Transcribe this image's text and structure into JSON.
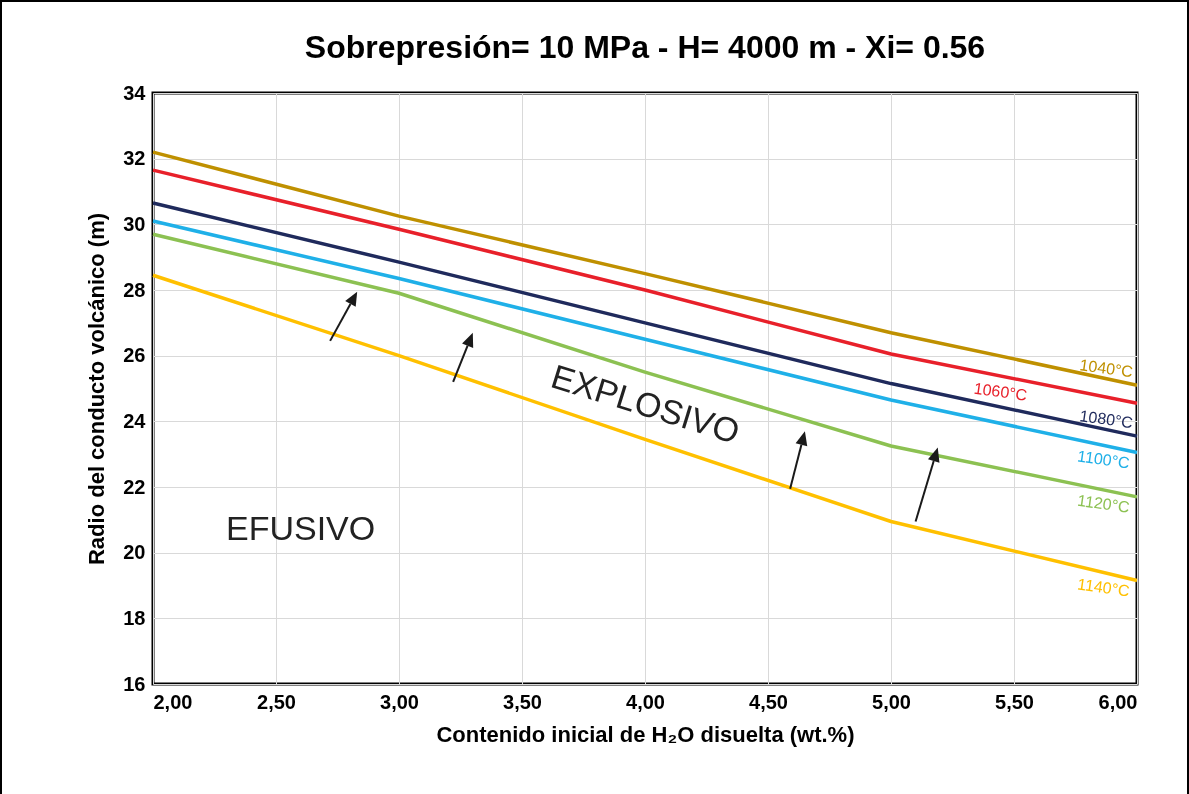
{
  "chart_data": {
    "type": "line",
    "title": "Sobrepresión= 10 MPa - H= 4000 m - Xi= 0.56",
    "xlabel": "Contenido inicial de H₂O disuelta (wt.%)",
    "ylabel": "Radio del conducto volcánico (m)",
    "x": [
      2,
      3,
      4,
      5,
      6
    ],
    "series": [
      {
        "name": "1040°C",
        "color": "#bf9000",
        "values": [
          32.2,
          30.25,
          28.5,
          26.7,
          25.1
        ]
      },
      {
        "name": "1060°C",
        "color": "#e8202a",
        "values": [
          31.65,
          29.85,
          28.0,
          26.05,
          24.55
        ]
      },
      {
        "name": "1080°C",
        "color": "#1f2a5c",
        "values": [
          30.65,
          28.85,
          27.0,
          25.15,
          23.55
        ]
      },
      {
        "name": "1100°C",
        "color": "#1fb0e8",
        "values": [
          30.1,
          28.35,
          26.5,
          24.65,
          23.05
        ]
      },
      {
        "name": "1120°C",
        "color": "#8cc152",
        "values": [
          29.7,
          27.9,
          25.5,
          23.25,
          21.7
        ]
      },
      {
        "name": "1140°C",
        "color": "#ffc000",
        "values": [
          28.45,
          26.0,
          23.45,
          20.95,
          19.15
        ]
      }
    ],
    "xlim": [
      2,
      6
    ],
    "xticks": [
      {
        "value": 2,
        "label": "2,00"
      },
      {
        "value": 2.5,
        "label": "2,50"
      },
      {
        "value": 3,
        "label": "3,00"
      },
      {
        "value": 3.5,
        "label": "3,50"
      },
      {
        "value": 4,
        "label": "4,00"
      },
      {
        "value": 4.5,
        "label": "4,50"
      },
      {
        "value": 5,
        "label": "5,00"
      },
      {
        "value": 5.5,
        "label": "5,50"
      },
      {
        "value": 6,
        "label": "6,00"
      }
    ],
    "ylim": [
      16,
      34
    ],
    "yticks": [
      16,
      18,
      20,
      22,
      24,
      26,
      28,
      30,
      32,
      34
    ],
    "grid": true,
    "annotations": [
      "EFUSIVO",
      "EXPLOSIVO"
    ]
  }
}
